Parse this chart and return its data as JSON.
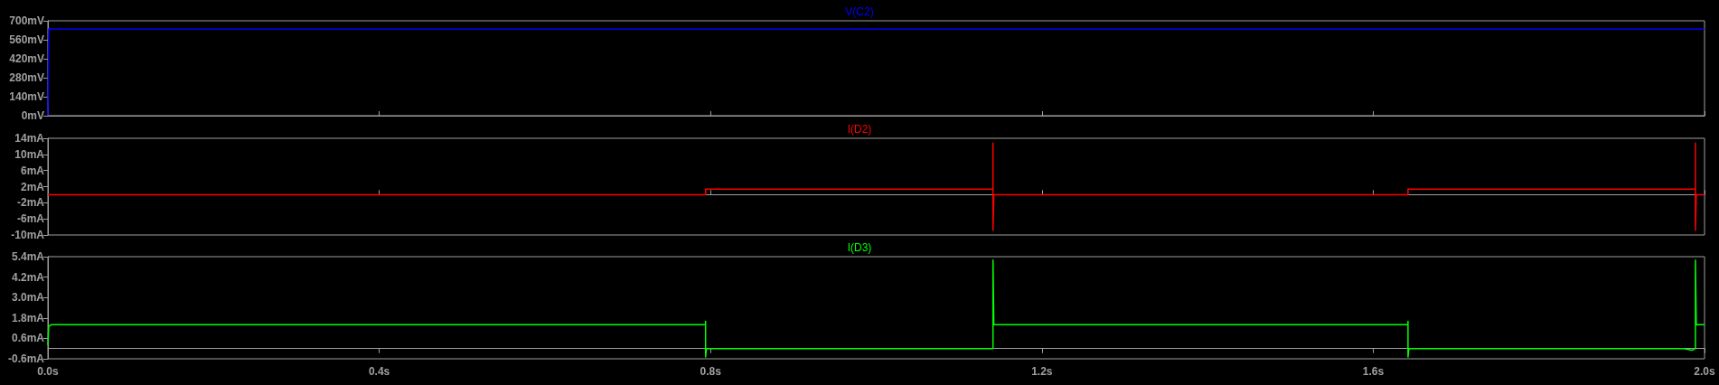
{
  "chart_data": [
    {
      "type": "line",
      "title": "V(C2)",
      "tick_labels": "y",
      "grid": false,
      "marker": "none",
      "xlim": [
        0,
        2.0
      ],
      "xticks": [
        0,
        0.4,
        0.8,
        1.2,
        1.6,
        2.0
      ],
      "ylim": [
        0,
        700
      ],
      "yticks": [
        {
          "value": 0,
          "label": "0mV"
        },
        {
          "value": 140,
          "label": "140mV"
        },
        {
          "value": 280,
          "label": "280mV"
        },
        {
          "value": 420,
          "label": "420mV"
        },
        {
          "value": 560,
          "label": "560mV"
        },
        {
          "value": 700,
          "label": "700mV"
        }
      ],
      "series": [
        {
          "color": "#0000ff",
          "x": [
            0,
            0.001,
            2.0
          ],
          "values": [
            0,
            640,
            640
          ]
        }
      ]
    },
    {
      "type": "line",
      "title": "I(D2)",
      "tick_labels": "y",
      "grid": false,
      "marker": "none",
      "xlim": [
        0,
        2.0
      ],
      "xticks": [
        0,
        0.4,
        0.8,
        1.2,
        1.6,
        2.0
      ],
      "ylim": [
        -10,
        14
      ],
      "yticks": [
        {
          "value": -10,
          "label": "-10mA"
        },
        {
          "value": -6,
          "label": "-6mA"
        },
        {
          "value": -2,
          "label": "-2mA"
        },
        {
          "value": 2,
          "label": "2mA"
        },
        {
          "value": 6,
          "label": "6mA"
        },
        {
          "value": 10,
          "label": "10mA"
        },
        {
          "value": 14,
          "label": "14mA"
        }
      ],
      "series": [
        {
          "color": "#ff0000",
          "x": [
            0,
            0.794,
            0.794,
            1.141,
            1.141,
            1.141,
            1.142,
            1.642,
            1.642,
            1.989,
            1.989,
            1.989,
            1.99,
            2.0
          ],
          "values": [
            0,
            0,
            1.4,
            1.4,
            12.8,
            -8.9,
            0,
            0,
            1.4,
            1.4,
            12.8,
            -8.9,
            0,
            0
          ]
        }
      ]
    },
    {
      "type": "line",
      "title": "I(D3)",
      "grid": false,
      "marker": "none",
      "xlim": [
        0,
        2.0
      ],
      "xticks": [
        {
          "value": 0,
          "label": "0.0s"
        },
        {
          "value": 0.4,
          "label": "0.4s"
        },
        {
          "value": 0.8,
          "label": "0.8s"
        },
        {
          "value": 1.2,
          "label": "1.2s"
        },
        {
          "value": 1.6,
          "label": "1.6s"
        },
        {
          "value": 2.0,
          "label": "2.0s"
        }
      ],
      "ylim": [
        -0.6,
        5.4
      ],
      "yticks": [
        {
          "value": -0.6,
          "label": "-0.6mA"
        },
        {
          "value": 0.6,
          "label": "0.6mA"
        },
        {
          "value": 1.8,
          "label": "1.8mA"
        },
        {
          "value": 3.0,
          "label": "3.0mA"
        },
        {
          "value": 4.2,
          "label": "4.2mA"
        },
        {
          "value": 5.4,
          "label": "5.4mA"
        }
      ],
      "series": [
        {
          "color": "#00ff00",
          "x": [
            0,
            0.001,
            0.004,
            0.794,
            0.794,
            0.794,
            0.795,
            1.141,
            1.141,
            1.142,
            1.642,
            1.642,
            1.642,
            1.643,
            1.975,
            1.985,
            1.989,
            1.989,
            1.99,
            2.0
          ],
          "values": [
            0.2,
            1.3,
            1.4,
            1.4,
            1.6,
            -0.5,
            0,
            0,
            5.2,
            1.4,
            1.4,
            1.6,
            -0.5,
            0,
            0,
            -0.1,
            0,
            5.2,
            1.4,
            1.4
          ]
        }
      ]
    }
  ]
}
